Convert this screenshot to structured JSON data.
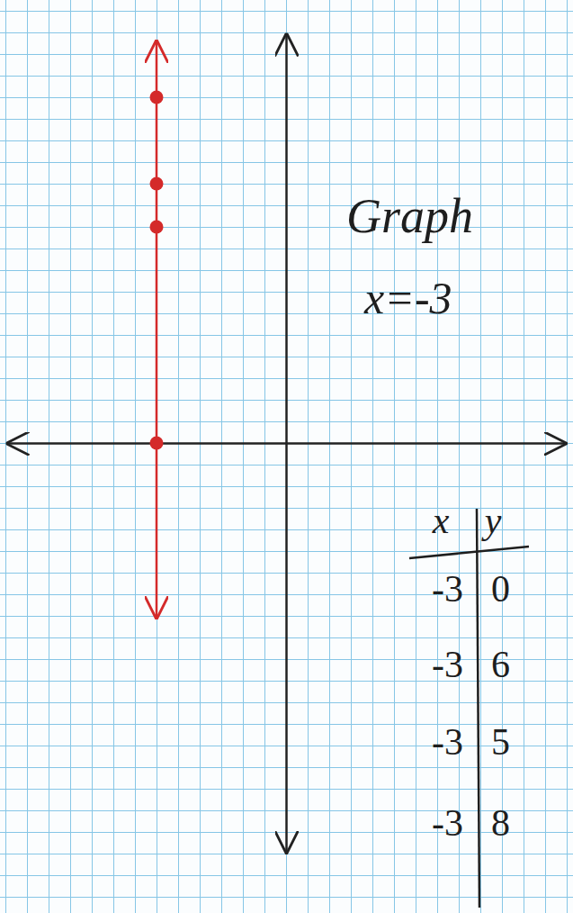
{
  "chart_data": {
    "type": "line",
    "title": "Graph",
    "subtitle": "x=-3",
    "x": [
      -3,
      -3,
      -3,
      -3
    ],
    "values": [
      0,
      6,
      5,
      8
    ],
    "color": "#d42a2a",
    "marker": "circle",
    "xlim": [
      -6.5,
      6.5
    ],
    "ylim": [
      -9.5,
      9.5
    ],
    "xticks": [],
    "yticks": [],
    "tick_labels": false
  },
  "table": {
    "columns": [
      "x",
      "y"
    ]
  }
}
